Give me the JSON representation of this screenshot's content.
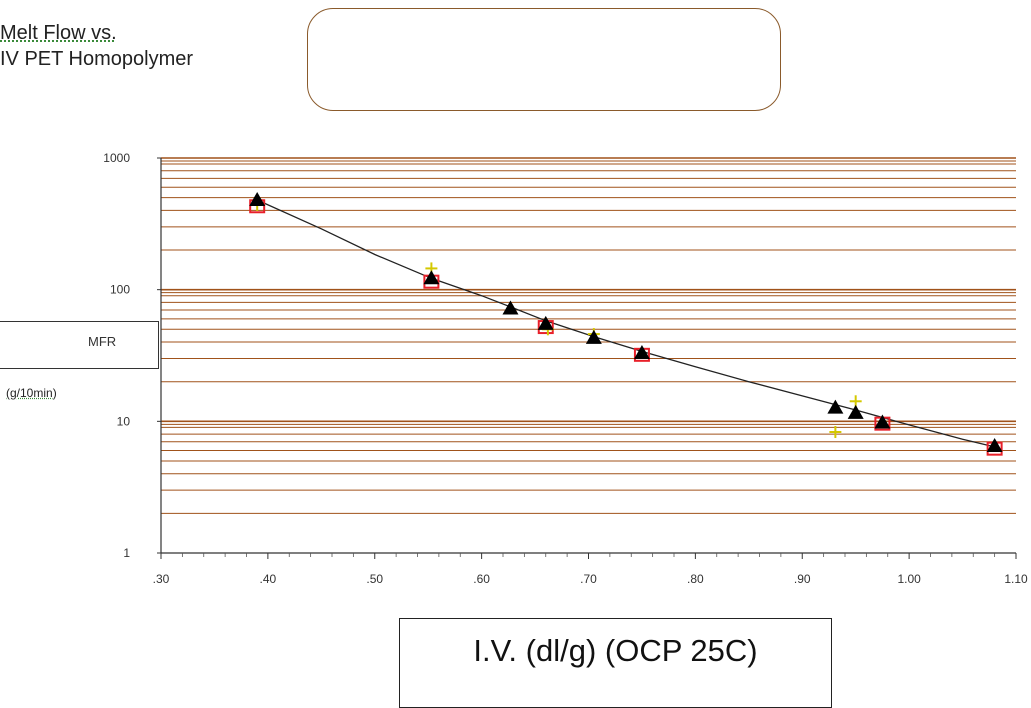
{
  "chart_data": {
    "type": "scatter",
    "title_line1": "Melt Flow vs.",
    "title_line2": "IV PET Homopolymer",
    "ylabel": "MFR",
    "yunit": "(g/10min)",
    "xlabel": "I.V. (dl/g) (OCP 25C)",
    "x_scale": "linear",
    "y_scale": "log",
    "xlim": [
      0.3,
      1.1
    ],
    "ylim": [
      1,
      1000
    ],
    "x_ticks": [
      ".30",
      ".40",
      ".50",
      ".60",
      ".70",
      ".80",
      ".90",
      "1.00",
      "1.10"
    ],
    "y_ticks": [
      "1",
      "10",
      "100",
      "1000"
    ],
    "grid": "horizontal",
    "colors": {
      "grid": "#a0521a",
      "fit_line": "#222222",
      "triangle": "#000000",
      "square": "#e8202a",
      "cross": "#d4c800"
    },
    "series": [
      {
        "marker": "triangle",
        "x": [
          0.39,
          0.553,
          0.627,
          0.66,
          0.705,
          0.75,
          0.931,
          0.95,
          0.975,
          1.08
        ],
        "y": [
          480,
          122,
          72,
          55,
          43,
          33,
          12.7,
          11.6,
          9.8,
          6.5
        ]
      },
      {
        "marker": "square",
        "x": [
          0.39,
          0.553,
          0.66,
          0.75,
          0.975,
          1.08
        ],
        "y": [
          430,
          115,
          52,
          32,
          9.6,
          6.2
        ]
      },
      {
        "marker": "cross",
        "x": [
          0.39,
          0.553,
          0.662,
          0.705,
          0.931,
          0.95
        ],
        "y": [
          440,
          145,
          50,
          46,
          8.3,
          14.2
        ]
      }
    ],
    "fit_line": {
      "x": [
        0.39,
        0.45,
        0.5,
        0.553,
        0.6,
        0.627,
        0.66,
        0.705,
        0.75,
        0.8,
        0.85,
        0.9,
        0.95,
        1.0,
        1.05,
        1.08
      ],
      "y": [
        480,
        290,
        185,
        122,
        90,
        74,
        58,
        44,
        34,
        26,
        20,
        15.6,
        12.2,
        9.4,
        7.3,
        6.4
      ]
    }
  }
}
